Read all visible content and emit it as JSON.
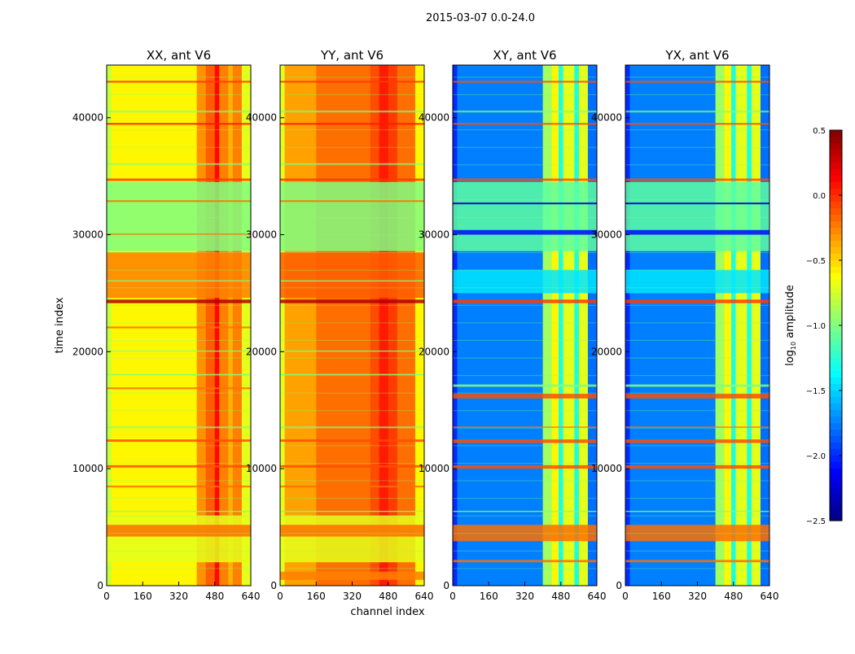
{
  "chart_data": {
    "type": "heatmap",
    "suptitle": "2015-03-07 0.0-24.0",
    "xlabel": "channel index",
    "ylabel": "time index",
    "xlim": [
      0,
      640
    ],
    "ylim": [
      0,
      44500
    ],
    "xticks": [
      "0",
      "160",
      "320",
      "480",
      "640"
    ],
    "yticks": [
      "0",
      "10000",
      "20000",
      "30000",
      "40000"
    ],
    "xtick_values": [
      0,
      160,
      320,
      480,
      640
    ],
    "ytick_values": [
      0,
      10000,
      20000,
      30000,
      40000
    ],
    "colorbar": {
      "label_main": "log",
      "label_sub": "10",
      "label_rest": " amplitude",
      "range": [
        -2.5,
        0.5
      ],
      "ticks": [
        "0.5",
        "0.0",
        "−0.5",
        "−1.0",
        "−1.5",
        "−2.0",
        "−2.5"
      ],
      "tick_values": [
        0.5,
        0.0,
        -0.5,
        -1.0,
        -1.5,
        -2.0,
        -2.5
      ],
      "colormap": "jet"
    },
    "panels": [
      {
        "title": "XX, ant V6",
        "channel_profile": [
          [
            0,
            20,
            -0.8
          ],
          [
            20,
            400,
            -0.6
          ],
          [
            400,
            440,
            -0.3
          ],
          [
            440,
            480,
            -0.15
          ],
          [
            480,
            500,
            0.1
          ],
          [
            500,
            540,
            -0.25
          ],
          [
            540,
            560,
            -0.4
          ],
          [
            560,
            600,
            -0.25
          ],
          [
            600,
            640,
            -0.7
          ]
        ],
        "time_bands": [
          [
            28600,
            34500,
            -1.0
          ],
          [
            24600,
            28500,
            -0.25
          ],
          [
            24150,
            24450,
            0.35
          ],
          [
            2000,
            6000,
            -0.7
          ],
          [
            4200,
            5200,
            -0.2
          ],
          [
            34600,
            34800,
            -0.05
          ],
          [
            43000,
            43150,
            -0.05
          ],
          [
            39400,
            39550,
            0.05
          ],
          [
            32800,
            32950,
            -0.2
          ],
          [
            12300,
            12500,
            -0.1
          ],
          [
            10100,
            10300,
            -0.1
          ],
          [
            8400,
            8550,
            -0.2
          ],
          [
            16800,
            16950,
            -0.2
          ],
          [
            22000,
            22150,
            -0.2
          ],
          [
            6300,
            6400,
            -1.0
          ],
          [
            40500,
            40600,
            -1.0
          ],
          [
            36000,
            36100,
            -1.0
          ],
          [
            13500,
            13600,
            -1.0
          ],
          [
            18000,
            18100,
            -1.0
          ],
          [
            20000,
            20100,
            -1.0
          ],
          [
            26000,
            26100,
            -1.0
          ],
          [
            30000,
            30100,
            -0.2
          ]
        ]
      },
      {
        "title": "YY, ant V6",
        "channel_profile": [
          [
            0,
            20,
            -0.7
          ],
          [
            20,
            160,
            -0.35
          ],
          [
            160,
            400,
            -0.2
          ],
          [
            400,
            440,
            -0.1
          ],
          [
            440,
            480,
            0.05
          ],
          [
            480,
            520,
            -0.05
          ],
          [
            520,
            600,
            -0.2
          ],
          [
            600,
            640,
            -0.6
          ]
        ],
        "time_bands": [
          [
            28600,
            34500,
            -1.0
          ],
          [
            24600,
            28500,
            -0.15
          ],
          [
            24150,
            24450,
            0.35
          ],
          [
            2000,
            6000,
            -0.7
          ],
          [
            4200,
            5200,
            -0.2
          ],
          [
            34600,
            34800,
            -0.05
          ],
          [
            43000,
            43150,
            -0.05
          ],
          [
            39400,
            39550,
            0.05
          ],
          [
            32800,
            32950,
            -0.2
          ],
          [
            12300,
            12500,
            -0.1
          ],
          [
            10100,
            10300,
            -0.1
          ],
          [
            8400,
            8550,
            -0.2
          ],
          [
            6300,
            6400,
            -1.0
          ],
          [
            40500,
            40600,
            -1.0
          ],
          [
            36000,
            36100,
            -1.0
          ],
          [
            13500,
            13600,
            -1.0
          ],
          [
            18000,
            18100,
            -1.0
          ],
          [
            20000,
            20100,
            -1.0
          ],
          [
            26000,
            26100,
            -1.0
          ],
          [
            500,
            1200,
            -0.25
          ]
        ]
      },
      {
        "title": "XY, ant V6",
        "channel_profile": [
          [
            0,
            20,
            -2.0
          ],
          [
            20,
            400,
            -1.75
          ],
          [
            400,
            440,
            -0.9
          ],
          [
            440,
            470,
            -0.6
          ],
          [
            470,
            490,
            -1.3
          ],
          [
            490,
            540,
            -0.7
          ],
          [
            540,
            560,
            -1.3
          ],
          [
            560,
            600,
            -0.7
          ],
          [
            600,
            640,
            -1.8
          ]
        ],
        "time_bands": [
          [
            28600,
            34500,
            -1.1
          ],
          [
            24150,
            24450,
            -0.05
          ],
          [
            25000,
            27000,
            -1.45
          ],
          [
            16000,
            16400,
            -0.1
          ],
          [
            12200,
            12500,
            -0.1
          ],
          [
            10000,
            10300,
            -0.1
          ],
          [
            3800,
            5200,
            -0.2
          ],
          [
            2000,
            2200,
            -0.2
          ],
          [
            34600,
            34800,
            -0.1
          ],
          [
            43000,
            43150,
            -0.1
          ],
          [
            39400,
            39550,
            -0.1
          ],
          [
            32600,
            32750,
            -2.3
          ],
          [
            6300,
            6400,
            -1.0
          ],
          [
            40500,
            40600,
            -1.0
          ],
          [
            13500,
            13600,
            -0.2
          ],
          [
            30000,
            30400,
            -2.1
          ],
          [
            17000,
            17200,
            -1.0
          ]
        ]
      },
      {
        "title": "YX, ant V6",
        "channel_profile": [
          [
            0,
            20,
            -2.0
          ],
          [
            20,
            400,
            -1.75
          ],
          [
            400,
            440,
            -0.9
          ],
          [
            440,
            470,
            -0.6
          ],
          [
            470,
            490,
            -1.3
          ],
          [
            490,
            540,
            -0.7
          ],
          [
            540,
            560,
            -1.3
          ],
          [
            560,
            600,
            -0.7
          ],
          [
            600,
            640,
            -1.8
          ]
        ],
        "time_bands": [
          [
            28600,
            34500,
            -1.1
          ],
          [
            24150,
            24450,
            -0.05
          ],
          [
            25000,
            27000,
            -1.45
          ],
          [
            16000,
            16400,
            -0.1
          ],
          [
            12200,
            12500,
            -0.1
          ],
          [
            10000,
            10300,
            -0.1
          ],
          [
            3800,
            5200,
            -0.2
          ],
          [
            2000,
            2200,
            -0.2
          ],
          [
            34600,
            34800,
            -0.1
          ],
          [
            43000,
            43150,
            -0.1
          ],
          [
            39400,
            39550,
            -0.1
          ],
          [
            32600,
            32750,
            -2.3
          ],
          [
            6300,
            6400,
            -1.0
          ],
          [
            40500,
            40600,
            -1.0
          ],
          [
            13500,
            13600,
            -0.2
          ],
          [
            30000,
            30400,
            -2.1
          ],
          [
            17000,
            17200,
            -1.0
          ]
        ]
      }
    ]
  }
}
